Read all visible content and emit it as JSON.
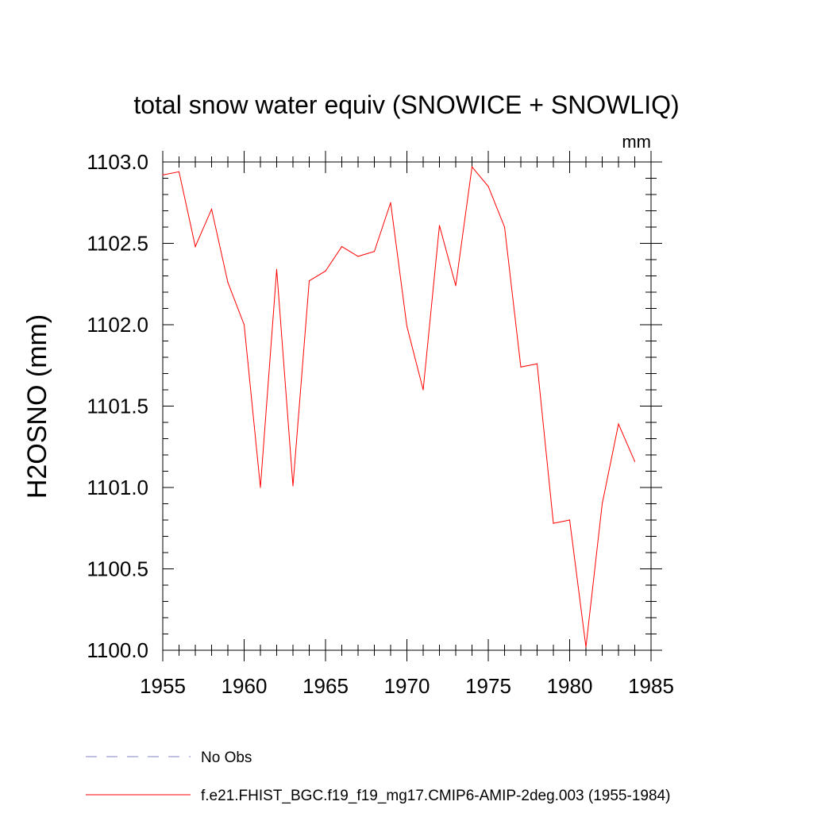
{
  "chart_data": {
    "type": "line",
    "title": "total snow water equiv (SNOWICE + SNOWLIQ)",
    "units": "mm",
    "xlabel": "",
    "ylabel": "H2OSNO  (mm)",
    "xlim": [
      1955,
      1985
    ],
    "ylim": [
      1100.0,
      1103.0
    ],
    "x_ticks": [
      1955,
      1960,
      1965,
      1970,
      1975,
      1980,
      1985
    ],
    "x_tick_labels": [
      "1955",
      "1960",
      "1965",
      "1970",
      "1975",
      "1980",
      "1985"
    ],
    "y_ticks": [
      1100.0,
      1100.5,
      1101.0,
      1101.5,
      1102.0,
      1102.5,
      1103.0
    ],
    "y_tick_labels": [
      "1100.0",
      "1100.5",
      "1101.0",
      "1101.5",
      "1102.0",
      "1102.5",
      "1103.0"
    ],
    "grid": false,
    "legend_position": "bottom",
    "series": [
      {
        "name": "f.e21.FHIST_BGC.f19_f19_mg17.CMIP6-AMIP-2deg.003 (1955-1984)",
        "color": "#ff0000",
        "style": "solid",
        "x": [
          1955,
          1956,
          1957,
          1958,
          1959,
          1960,
          1961,
          1962,
          1963,
          1964,
          1965,
          1966,
          1967,
          1968,
          1969,
          1970,
          1971,
          1972,
          1973,
          1974,
          1975,
          1976,
          1977,
          1978,
          1979,
          1980,
          1981,
          1982,
          1983,
          1984
        ],
        "values": [
          1102.92,
          1102.94,
          1102.48,
          1102.71,
          1102.26,
          1102.0,
          1101.0,
          1102.34,
          1101.01,
          1102.27,
          1102.33,
          1102.48,
          1102.42,
          1102.45,
          1102.75,
          1101.99,
          1101.6,
          1102.61,
          1102.24,
          1102.97,
          1102.85,
          1102.6,
          1101.74,
          1101.76,
          1100.78,
          1100.8,
          1100.02,
          1100.9,
          1101.39,
          1101.16
        ]
      },
      {
        "name": "No Obs",
        "color": "#8080c0",
        "style": "dashed",
        "x": [],
        "values": []
      }
    ]
  }
}
